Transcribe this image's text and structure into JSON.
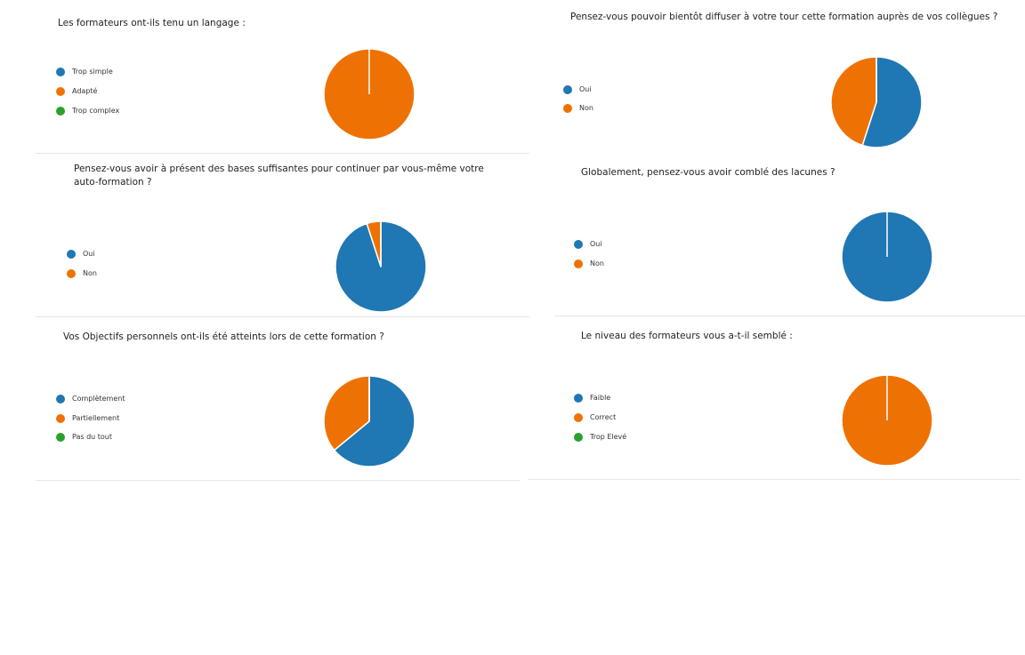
{
  "colors": {
    "blue": "#1f77b4",
    "orange": "#ee7203",
    "green": "#2ca02c"
  },
  "chart_data": [
    {
      "type": "pie",
      "title": "Les formateurs ont-ils tenu un langage :",
      "categories": [
        "Trop simple",
        "Adapté",
        "Trop complex"
      ],
      "values": [
        0,
        100,
        0
      ],
      "colors": [
        "#1f77b4",
        "#ee7203",
        "#2ca02c"
      ],
      "legend_position": "left"
    },
    {
      "type": "pie",
      "title": "Pensez-vous pouvoir bientôt diffuser à votre tour cette formation auprès de vos collègues ?",
      "categories": [
        "Oui",
        "Non"
      ],
      "values": [
        55,
        45
      ],
      "colors": [
        "#1f77b4",
        "#ee7203"
      ],
      "legend_position": "left"
    },
    {
      "type": "pie",
      "title": "Pensez-vous avoir à présent des bases suffisantes pour continuer par vous-même votre auto-formation ?",
      "categories": [
        "Oui",
        "Non"
      ],
      "values": [
        95,
        5
      ],
      "colors": [
        "#1f77b4",
        "#ee7203"
      ],
      "legend_position": "left"
    },
    {
      "type": "pie",
      "title": "Globalement, pensez-vous avoir comblé des lacunes ?",
      "categories": [
        "Oui",
        "Non"
      ],
      "values": [
        100,
        0
      ],
      "colors": [
        "#1f77b4",
        "#ee7203"
      ],
      "legend_position": "left"
    },
    {
      "type": "pie",
      "title": "Vos Objectifs personnels ont-ils été atteints lors de cette formation ?",
      "categories": [
        "Complètement",
        "Partiellement",
        "Pas du tout"
      ],
      "values": [
        64,
        36,
        0
      ],
      "colors": [
        "#1f77b4",
        "#ee7203",
        "#2ca02c"
      ],
      "legend_position": "left"
    },
    {
      "type": "pie",
      "title": "Le niveau des formateurs vous a-t-il semblé :",
      "categories": [
        "Faible",
        "Correct",
        "Trop Elevé"
      ],
      "values": [
        0,
        100,
        0
      ],
      "colors": [
        "#1f77b4",
        "#ee7203",
        "#2ca02c"
      ],
      "legend_position": "left"
    }
  ]
}
